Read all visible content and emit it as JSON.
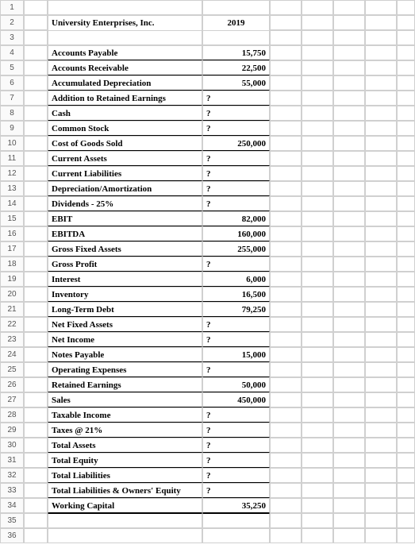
{
  "header": {
    "title": "University Enterprises, Inc.",
    "year": "2019"
  },
  "rows": [
    {
      "label": "Accounts Payable",
      "value": "15,750"
    },
    {
      "label": "Accounts Receivable",
      "value": "22,500"
    },
    {
      "label": "Accumulated Depreciation",
      "value": "55,000"
    },
    {
      "label": "Addition to Retained Earnings",
      "value": "?"
    },
    {
      "label": "Cash",
      "value": "?"
    },
    {
      "label": "Common Stock",
      "value": "?"
    },
    {
      "label": "Cost of Goods Sold",
      "value": "250,000"
    },
    {
      "label": "Current Assets",
      "value": "?"
    },
    {
      "label": "Current Liabilities",
      "value": "?"
    },
    {
      "label": "Depreciation/Amortization",
      "value": "?"
    },
    {
      "label": "Dividends - 25%",
      "value": "?"
    },
    {
      "label": "EBIT",
      "value": "82,000"
    },
    {
      "label": "EBITDA",
      "value": "160,000"
    },
    {
      "label": "Gross Fixed Assets",
      "value": "255,000"
    },
    {
      "label": "Gross Profit",
      "value": "?"
    },
    {
      "label": "Interest",
      "value": "6,000"
    },
    {
      "label": "Inventory",
      "value": "16,500"
    },
    {
      "label": "Long-Term Debt",
      "value": "79,250"
    },
    {
      "label": "Net Fixed Assets",
      "value": "?"
    },
    {
      "label": "Net Income",
      "value": "?"
    },
    {
      "label": "Notes Payable",
      "value": "15,000"
    },
    {
      "label": "Operating Expenses",
      "value": "?"
    },
    {
      "label": "Retained Earnings",
      "value": "50,000"
    },
    {
      "label": "Sales",
      "value": "450,000"
    },
    {
      "label": "Taxable Income",
      "value": "?"
    },
    {
      "label": "Taxes @ 21%",
      "value": "?"
    },
    {
      "label": "Total Assets",
      "value": "?"
    },
    {
      "label": "Total Equity",
      "value": "?"
    },
    {
      "label": "Total Liabilities",
      "value": "?"
    },
    {
      "label": "Total Liabilities & Owners' Equity",
      "value": "?"
    },
    {
      "label": "Working Capital",
      "value": "35,250"
    }
  ],
  "layout": {
    "total_rows": 36,
    "question_align_left": true
  }
}
